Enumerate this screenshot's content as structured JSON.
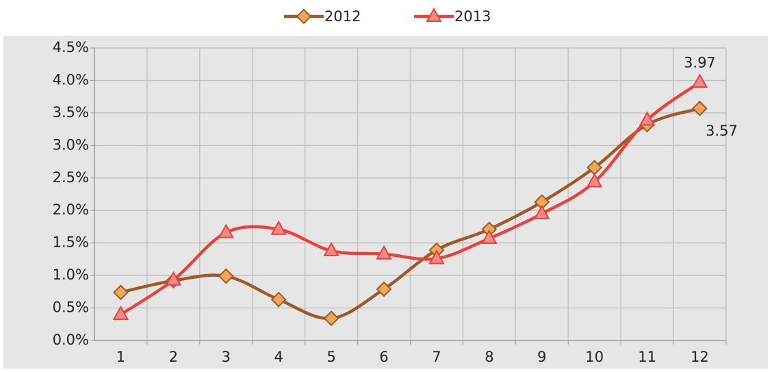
{
  "chart_data": {
    "type": "line",
    "categories": [
      "1",
      "2",
      "3",
      "4",
      "5",
      "6",
      "7",
      "8",
      "9",
      "10",
      "11",
      "12"
    ],
    "series": [
      {
        "name": "2012",
        "color": "#9c5a28",
        "marker": "diamond",
        "marker_color": "#f2a65a",
        "values": [
          0.74,
          0.92,
          0.99,
          0.63,
          0.34,
          0.79,
          1.39,
          1.71,
          2.13,
          2.66,
          3.32,
          3.57
        ],
        "value_labels": [
          null,
          null,
          null,
          null,
          null,
          null,
          null,
          null,
          null,
          null,
          null,
          "3.57"
        ]
      },
      {
        "name": "2013",
        "color": "#e8433a",
        "marker": "triangle",
        "marker_color": "#f08a8a",
        "values": [
          0.4,
          0.93,
          1.66,
          1.71,
          1.38,
          1.33,
          1.26,
          1.57,
          1.95,
          2.44,
          3.39,
          3.97
        ],
        "value_labels": [
          null,
          null,
          null,
          null,
          null,
          null,
          null,
          null,
          null,
          null,
          null,
          "3.97"
        ]
      }
    ],
    "ylim": [
      0,
      4.5
    ],
    "yticks": [
      {
        "value": 0,
        "label": "0.0%"
      },
      {
        "value": 0.5,
        "label": "0.5%"
      },
      {
        "value": 1,
        "label": "1.0%"
      },
      {
        "value": 1.5,
        "label": "1.5%"
      },
      {
        "value": 2,
        "label": "2.0%"
      },
      {
        "value": 2.5,
        "label": "2.5%"
      },
      {
        "value": 3,
        "label": "3.0%"
      },
      {
        "value": 3.5,
        "label": "3.5%"
      },
      {
        "value": 4,
        "label": "4.0%"
      },
      {
        "value": 4.5,
        "label": "4.5%"
      }
    ],
    "grid": true,
    "smooth": true,
    "legend": "top"
  }
}
